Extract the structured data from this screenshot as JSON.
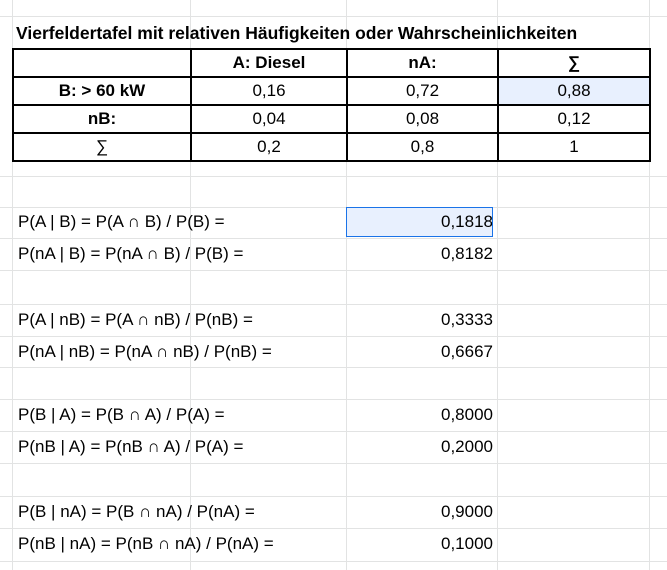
{
  "title": "Vierfeldertafel mit relativen Häufigkeiten oder Wahrscheinlichkeiten",
  "table": {
    "header": [
      "",
      "A: Diesel",
      "nA:",
      "∑"
    ],
    "rows": [
      [
        "B: > 60 kW",
        "0,16",
        "0,72",
        "0,88"
      ],
      [
        "nB:",
        "0,04",
        "0,08",
        "0,12"
      ],
      [
        "∑",
        "0,2",
        "0,8",
        "1"
      ]
    ]
  },
  "calculations": [
    {
      "label": "P(A | B) = P(A ∩ B) / P(B) =",
      "value": "0,1818"
    },
    {
      "label": "P(nA | B) = P(nA ∩ B) / P(B) =",
      "value": "0,8182"
    },
    {
      "label": "P(A | nB) = P(A ∩ nB) / P(nB) =",
      "value": "0,3333"
    },
    {
      "label": "P(nA | nB) = P(nA ∩ nB) / P(nB) =",
      "value": "0,6667"
    },
    {
      "label": "P(B | A) = P(B ∩ A) / P(A) =",
      "value": "0,8000"
    },
    {
      "label": "P(nB | A) = P(nB ∩ A) / P(A) =",
      "value": "0,2000"
    },
    {
      "label": "P(B | nA) = P(B ∩ nA) / P(nA) =",
      "value": "0,9000"
    },
    {
      "label": "P(nB | nA) = P(nB ∩ nA) / P(nA) =",
      "value": "0,1000"
    }
  ],
  "colors": {
    "gridline": "#e2e3e3",
    "selection_fill": "#e8f0fe",
    "selection_border": "#1a73e8"
  }
}
